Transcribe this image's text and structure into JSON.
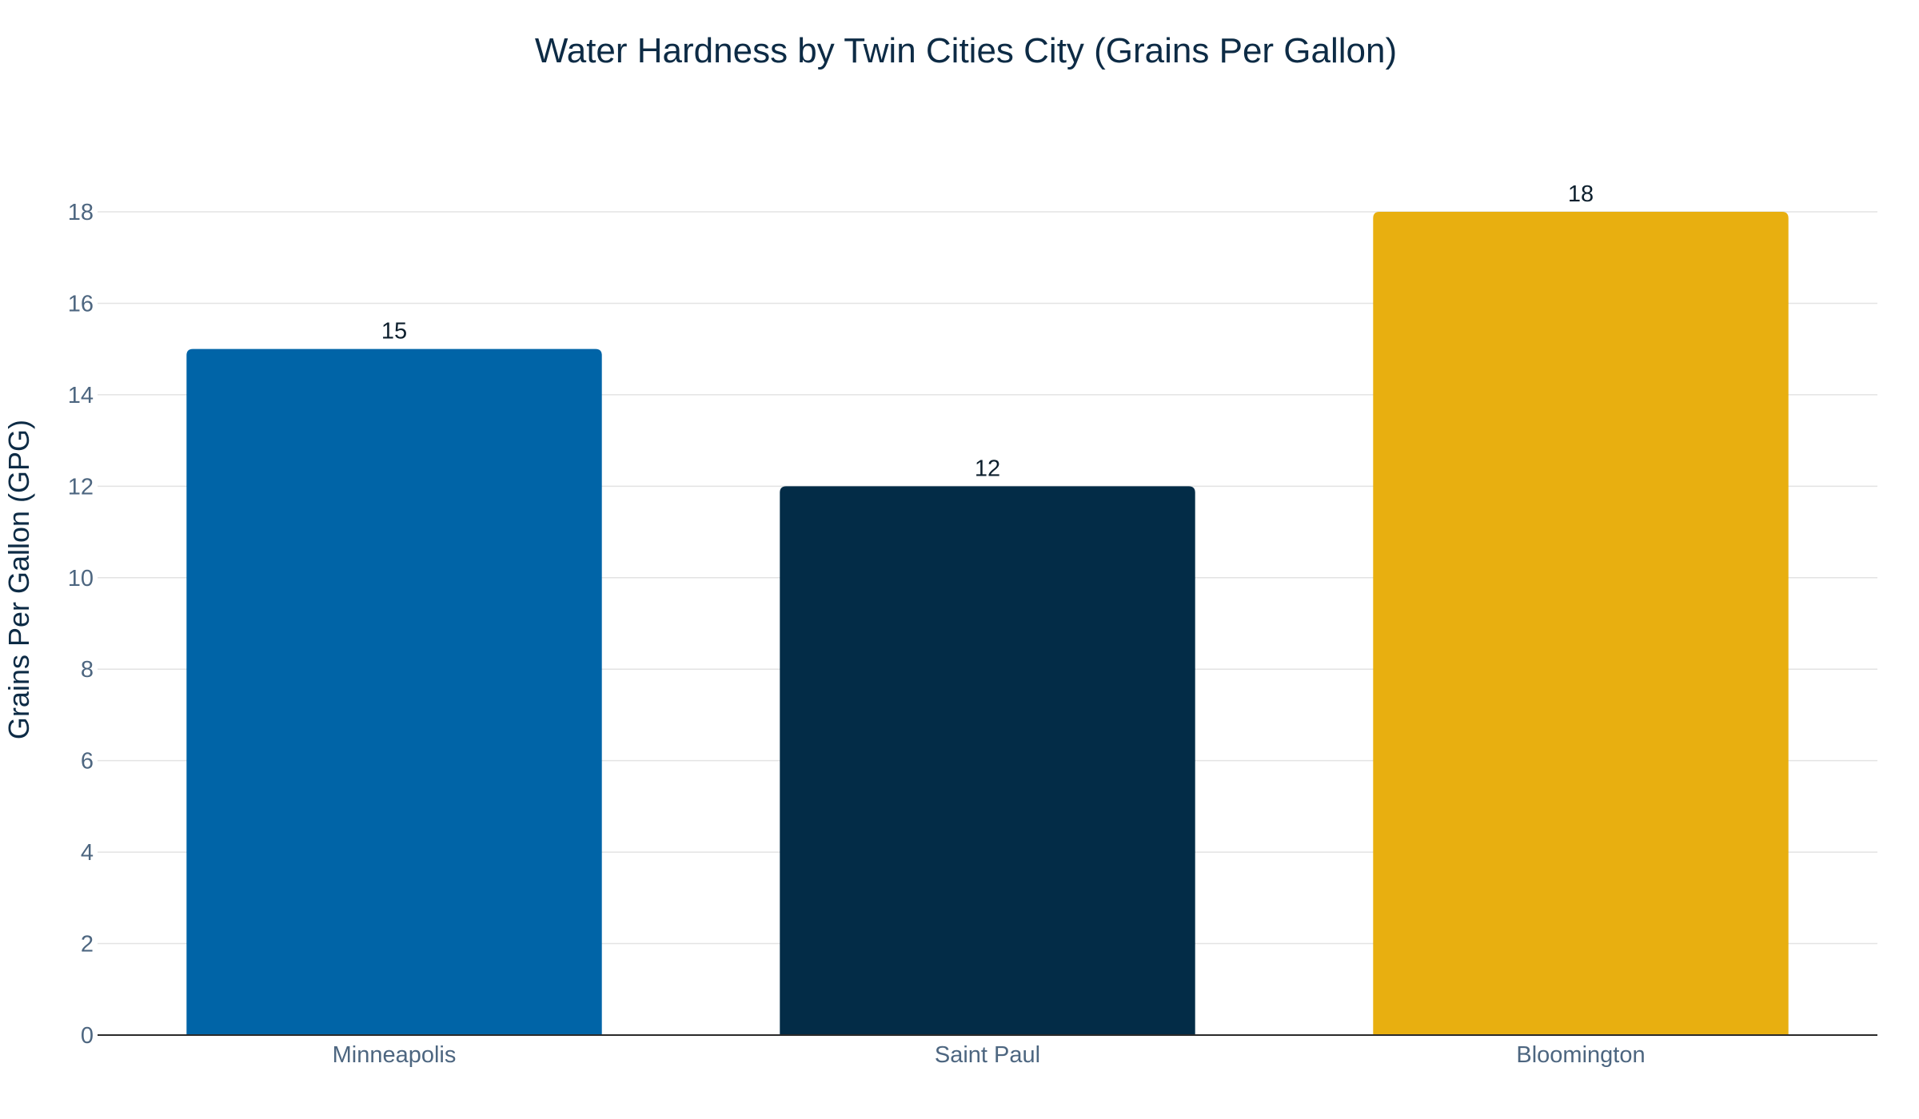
{
  "chart_data": {
    "type": "bar",
    "title": "Water Hardness by Twin Cities City (Grains Per Gallon)",
    "xlabel": "",
    "ylabel": "Grains Per Gallon (GPG)",
    "ylim": [
      0,
      18
    ],
    "yticks": [
      0,
      2,
      4,
      6,
      8,
      10,
      12,
      14,
      16,
      18
    ],
    "grid": true,
    "legend": "none",
    "categories": [
      "Minneapolis",
      "Saint Paul",
      "Bloomington"
    ],
    "values": [
      15,
      12,
      18
    ],
    "data_labels": [
      "15",
      "12",
      "18"
    ],
    "colors": [
      "#0064a7",
      "#032c47",
      "#e8af10"
    ]
  }
}
